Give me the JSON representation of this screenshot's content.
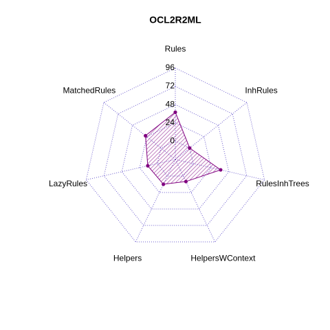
{
  "chart_data": {
    "type": "radar",
    "title": "OCL2R2ML",
    "categories": [
      "Rules",
      "InhRules",
      "RulesInhTrees",
      "HelpersWContext",
      "Helpers",
      "LazyRules",
      "MatchedRules"
    ],
    "values": [
      38,
      0,
      37,
      8,
      12,
      13,
      26
    ],
    "color": "#800080",
    "grid_color": "#6a5acd",
    "ylim": [
      0,
      96
    ],
    "yticks": [
      0,
      24,
      48,
      72,
      96
    ]
  }
}
